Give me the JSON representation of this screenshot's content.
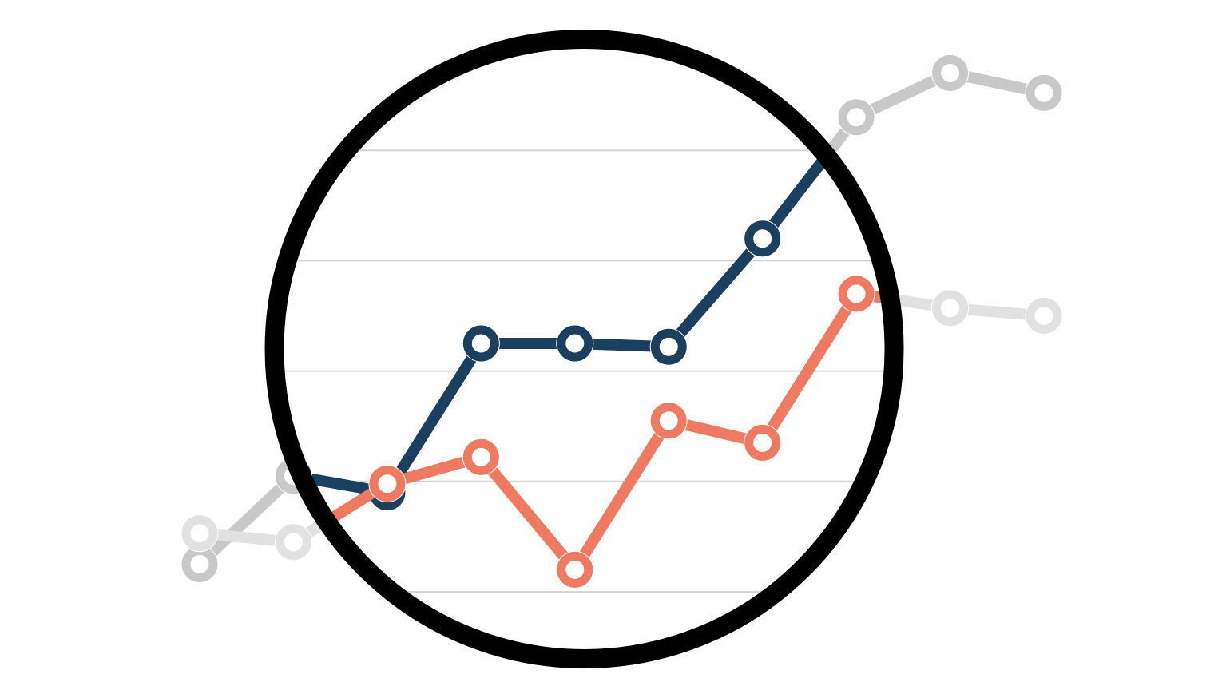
{
  "chart_data": {
    "type": "line",
    "title": "",
    "xlabel": "",
    "ylabel": "",
    "x": [
      1,
      2,
      3,
      4,
      5,
      6,
      7,
      8,
      9,
      10
    ],
    "xlim": [
      0.5,
      10.5
    ],
    "ylim": [
      0,
      5
    ],
    "grid": true,
    "legend": "none",
    "focus_circle": {
      "x_center": 5.1,
      "y_center": 2.2,
      "color": "#000000"
    },
    "series": [
      {
        "color": "#1b3f5e",
        "faded_color": "#c8c8c8",
        "values": [
          0.25,
          1.05,
          0.9,
          2.25,
          2.25,
          2.22,
          3.2,
          4.3,
          4.7,
          4.52
        ]
      },
      {
        "color": "#ee7a62",
        "faded_color": "#e1e1e1",
        "values": [
          0.53,
          0.45,
          0.98,
          1.22,
          0.2,
          1.55,
          1.35,
          2.7,
          2.57,
          2.5
        ]
      }
    ]
  }
}
